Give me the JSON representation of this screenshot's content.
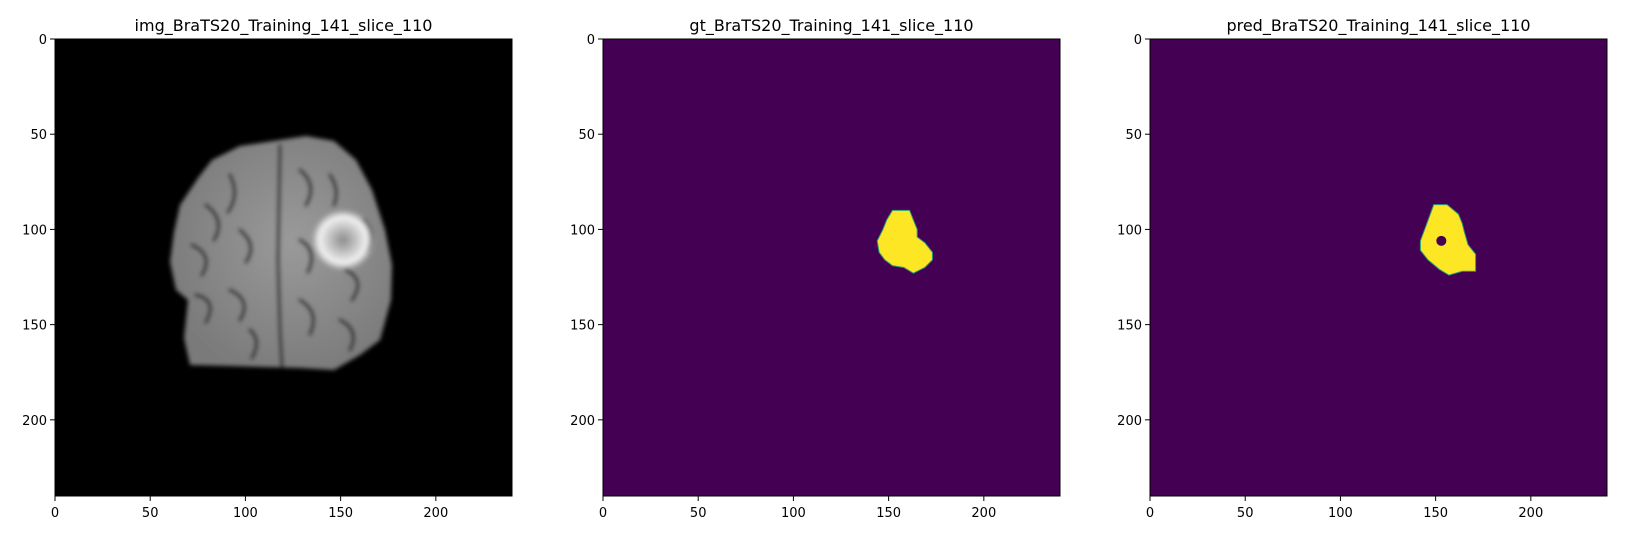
{
  "figure": {
    "panels": [
      {
        "id": "img",
        "title": "img_BraTS20_Training_141_slice_110"
      },
      {
        "id": "gt",
        "title": "gt_BraTS20_Training_141_slice_110"
      },
      {
        "id": "pred",
        "title": "pred_BraTS20_Training_141_slice_110"
      }
    ]
  },
  "chart_data": [
    {
      "type": "heatmap",
      "title": "img_BraTS20_Training_141_slice_110",
      "content": "grayscale brain MRI slice",
      "xlim": [
        0,
        240
      ],
      "ylim": [
        240,
        0
      ],
      "xticks": [
        0,
        50,
        100,
        150,
        200
      ],
      "yticks": [
        0,
        50,
        100,
        150,
        200
      ],
      "colormap": "gray",
      "background_color": "#000000",
      "lesion_center": [
        158,
        108
      ]
    },
    {
      "type": "heatmap",
      "title": "gt_BraTS20_Training_141_slice_110",
      "content": "ground-truth tumor mask",
      "xlim": [
        0,
        240
      ],
      "ylim": [
        240,
        0
      ],
      "xticks": [
        0,
        50,
        100,
        150,
        200
      ],
      "yticks": [
        0,
        50,
        100,
        150,
        200
      ],
      "colormap": "viridis",
      "background_color": "#440154",
      "mask_color": "#fde725",
      "mask_outline": [
        [
          152,
          90
        ],
        [
          161,
          90
        ],
        [
          163,
          95
        ],
        [
          165,
          100
        ],
        [
          165,
          104
        ],
        [
          169,
          107
        ],
        [
          173,
          112
        ],
        [
          173,
          116
        ],
        [
          169,
          120
        ],
        [
          163,
          123
        ],
        [
          158,
          120
        ],
        [
          152,
          119
        ],
        [
          148,
          116
        ],
        [
          145,
          112
        ],
        [
          144,
          106
        ],
        [
          147,
          100
        ],
        [
          149,
          95
        ]
      ]
    },
    {
      "type": "heatmap",
      "title": "pred_BraTS20_Training_141_slice_110",
      "content": "predicted tumor mask",
      "xlim": [
        0,
        240
      ],
      "ylim": [
        240,
        0
      ],
      "xticks": [
        0,
        50,
        100,
        150,
        200
      ],
      "yticks": [
        0,
        50,
        100,
        150,
        200
      ],
      "colormap": "viridis",
      "background_color": "#440154",
      "mask_color": "#fde725",
      "mask_outline": [
        [
          149,
          87
        ],
        [
          156,
          87
        ],
        [
          162,
          92
        ],
        [
          164,
          97
        ],
        [
          165,
          101
        ],
        [
          167,
          108
        ],
        [
          171,
          113
        ],
        [
          171,
          122
        ],
        [
          164,
          122
        ],
        [
          157,
          124
        ],
        [
          152,
          121
        ],
        [
          146,
          116
        ],
        [
          142,
          111
        ],
        [
          142,
          106
        ],
        [
          145,
          98
        ]
      ],
      "hole_center": [
        153,
        106
      ]
    }
  ]
}
